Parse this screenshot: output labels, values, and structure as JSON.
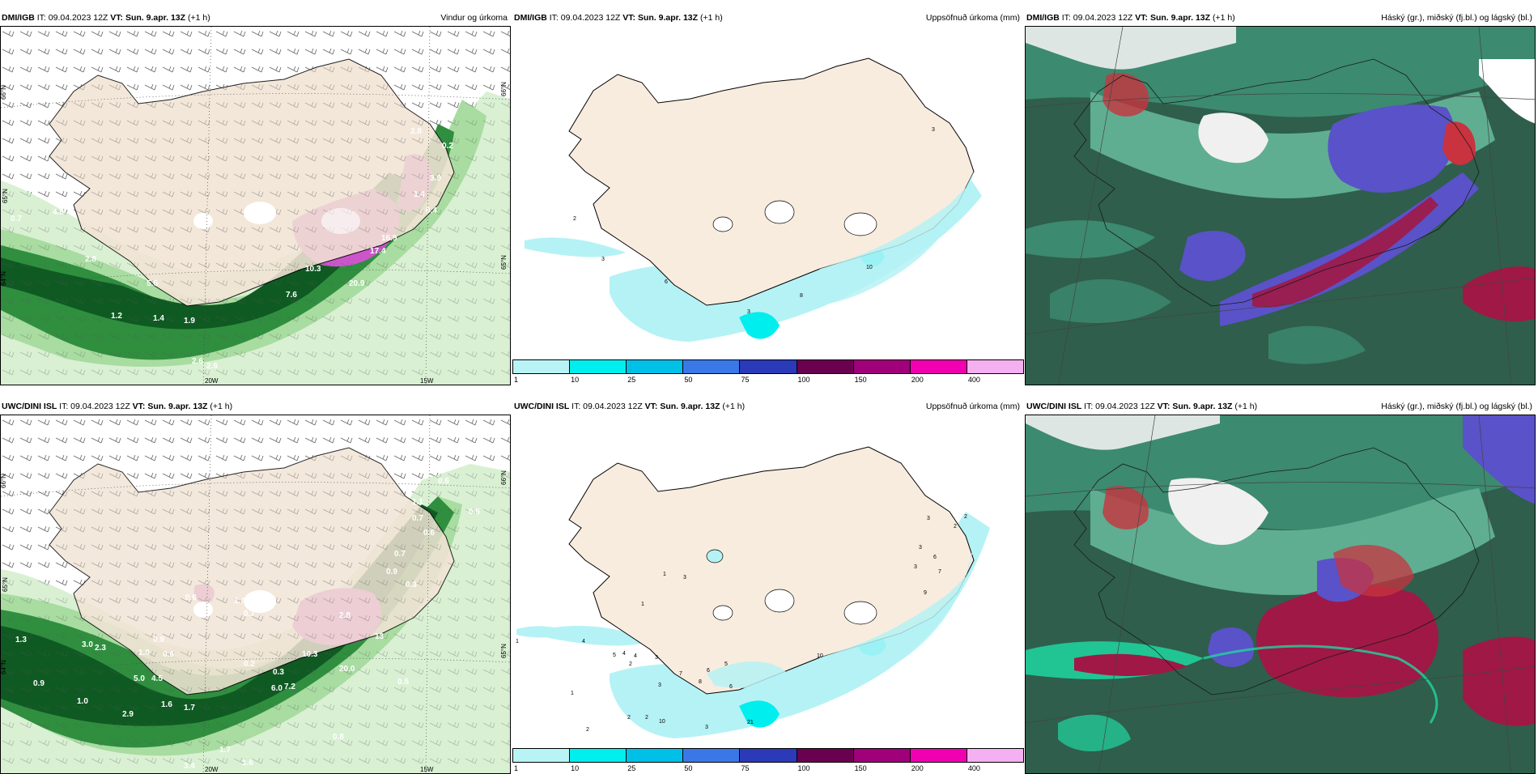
{
  "panels": {
    "p1": {
      "source": "DMI/IGB",
      "it": "IT: 09.04.2023 12Z",
      "vt_label": "VT:",
      "vt": "Sun. 9.apr. 13Z",
      "lead": "(+1 h)",
      "title": "Vindur og úrkoma"
    },
    "p2": {
      "source": "DMI/IGB",
      "it": "IT: 09.04.2023 12Z",
      "vt_label": "VT:",
      "vt": "Sun. 9.apr. 13Z",
      "lead": "(+1 h)",
      "title": "Uppsöfnuð úrkoma (mm)"
    },
    "p3": {
      "source": "DMI/IGB",
      "it": "IT: 09.04.2023 12Z",
      "vt_label": "VT:",
      "vt": "Sun. 9.apr. 13Z",
      "lead": "(+1 h)",
      "title": "Háský (gr.), miðský (fj.bl.) og lágský (bl.)"
    },
    "p4": {
      "source": "UWC/DINI ISL",
      "it": "IT: 09.04.2023 12Z",
      "vt_label": "VT:",
      "vt": "Sun. 9.apr. 13Z",
      "lead": "(+1 h)",
      "title": ""
    },
    "p5": {
      "source": "UWC/DINI ISL",
      "it": "IT: 09.04.2023 12Z",
      "vt_label": "VT:",
      "vt": "Sun. 9.apr. 13Z",
      "lead": "(+1 h)",
      "title": "Uppsöfnuð úrkoma (mm)"
    },
    "p6": {
      "source": "UWC/DINI ISL",
      "it": "IT: 09.04.2023 12Z",
      "vt_label": "VT:",
      "vt": "Sun. 9.apr. 13Z",
      "lead": "(+1 h)",
      "title": "Háský (gr.), miðský (fj.bl.) og lágský (bl.)"
    }
  },
  "grid_labels": {
    "lat66": "66°N",
    "lat65": "65°N",
    "lat64": "64°N",
    "lon15": "15W",
    "lon20": "20W"
  },
  "colorbar": {
    "levels": [
      "1",
      "10",
      "25",
      "50",
      "75",
      "100",
      "150",
      "200",
      "400"
    ],
    "colors": [
      "#b8f4f6",
      "#00eeee",
      "#00c0e8",
      "#3a78e8",
      "#2a3ab8",
      "#6a0050",
      "#a0007a",
      "#f000b0",
      "#f4b0f0"
    ]
  },
  "map_colors": {
    "land": "#f2e4d6",
    "land_accum": "#f8ecdf",
    "snow": "#ffffff",
    "precip_dark": "#0f5a22",
    "precip_mid": "#2f8f3f",
    "precip_light": "#a8dca0",
    "precip_pale": "#d9f0d3",
    "precip_purple": "#cc55cc",
    "accum_cyan": "#b5f2f5",
    "cloud_base": "#2f5e4c",
    "cloud_teal": "#3c8a70",
    "cloud_light": "#5fae92",
    "cloud_blue": "#5a52c8",
    "cloud_red": "#c8333f",
    "cloud_crimson": "#a01845",
    "cloud_white": "#f0f0f0",
    "cloud_mint": "#1fd6a0"
  },
  "p1_labels": [
    "0.7",
    "4.8",
    "2.8",
    "5.6",
    "1.2",
    "1.4",
    "1.9",
    "2.6",
    "2.6",
    "7.6",
    "10.3",
    "17.4",
    "16.9",
    "20.9",
    "0.2",
    "1.4",
    "0.4",
    "2.8",
    "3.9"
  ],
  "p2_labels": [
    "3",
    "3",
    "6",
    "8",
    "3",
    "10",
    "2"
  ],
  "p4_labels": [
    "0.6",
    "0.5",
    "1.1",
    "0.7",
    "0.6",
    "0.9",
    "0.7",
    "0.6",
    "3",
    "0.7",
    "1.0",
    "3.0",
    "2.3",
    "0.9",
    "1.3",
    "0.6",
    "0.9",
    "1.0",
    "1.0",
    "5.0",
    "4.5",
    "1.6",
    "1.7",
    "2.9",
    "1.7",
    "3.4",
    "1.6",
    "0.8",
    "0.5",
    "10.3",
    "13",
    "20.0",
    "0.2",
    "0.3",
    "6.0",
    "7.2",
    "2.8",
    "0.3"
  ],
  "p5_labels": [
    "3",
    "2",
    "2",
    "3",
    "6",
    "7",
    "9",
    "3",
    "1",
    "1",
    "4",
    "1",
    "3",
    "5",
    "4",
    "2",
    "4",
    "3",
    "1",
    "2",
    "2",
    "2",
    "3",
    "10",
    "7",
    "8",
    "6",
    "5",
    "6",
    "10",
    "21",
    "3"
  ]
}
